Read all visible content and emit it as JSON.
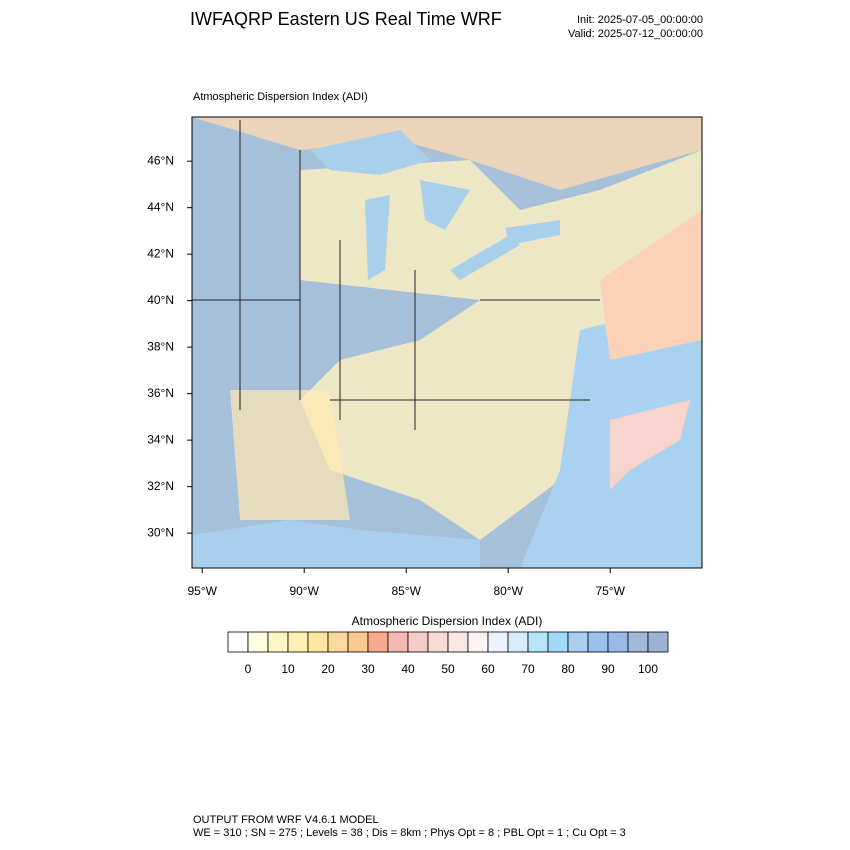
{
  "header": {
    "title": "IWFAQRP Eastern US Real Time WRF",
    "init": "Init: 2025-07-05_00:00:00",
    "valid": "Valid: 2025-07-12_00:00:00"
  },
  "map": {
    "title": "Atmospheric Dispersion Index   (ADI)",
    "latlim": [
      28.5,
      47.9
    ],
    "lonlim": [
      -95.5,
      -70.5
    ],
    "latticks": [
      {
        "value": 30,
        "label": "30°N"
      },
      {
        "value": 32,
        "label": "32°N"
      },
      {
        "value": 34,
        "label": "34°N"
      },
      {
        "value": 36,
        "label": "36°N"
      },
      {
        "value": 38,
        "label": "38°N"
      },
      {
        "value": 40,
        "label": "40°N"
      },
      {
        "value": 42,
        "label": "42°N"
      },
      {
        "value": 44,
        "label": "44°N"
      },
      {
        "value": 46,
        "label": "46°N"
      }
    ],
    "lonticks": [
      {
        "value": -95,
        "label": "95°W"
      },
      {
        "value": -90,
        "label": "90°W"
      },
      {
        "value": -85,
        "label": "85°W"
      },
      {
        "value": -80,
        "label": "80°W"
      },
      {
        "value": -75,
        "label": "75°W"
      }
    ]
  },
  "colorbar": {
    "title": "Atmospheric Dispersion Index  (ADI)",
    "lim": [
      -5,
      105
    ],
    "ticks": [
      0,
      10,
      20,
      30,
      40,
      50,
      60,
      70,
      80,
      90,
      100
    ],
    "colors": [
      "#ffffff",
      "#fffde0",
      "#fff6c4",
      "#ffefb2",
      "#ffe7a2",
      "#fdd89c",
      "#fbc890",
      "#f8aa8c",
      "#f4bab2",
      "#f6cac6",
      "#f8dad6",
      "#fae6e4",
      "#fdf2f2",
      "#eef2fe",
      "#d6ecfa",
      "#b8e4fa",
      "#a2d8f8",
      "#a8cef0",
      "#9cc0ec",
      "#98b8e8",
      "#a0b8dc",
      "#9cb4d4"
    ]
  },
  "footer": {
    "line1": "OUTPUT FROM WRF V4.6.1 MODEL",
    "line2": "WE = 310 ; SN = 275 ; Levels = 38 ; Dis = 8km ; Phys Opt = 8 ; PBL Opt = 1 ; Cu Opt = 3"
  }
}
